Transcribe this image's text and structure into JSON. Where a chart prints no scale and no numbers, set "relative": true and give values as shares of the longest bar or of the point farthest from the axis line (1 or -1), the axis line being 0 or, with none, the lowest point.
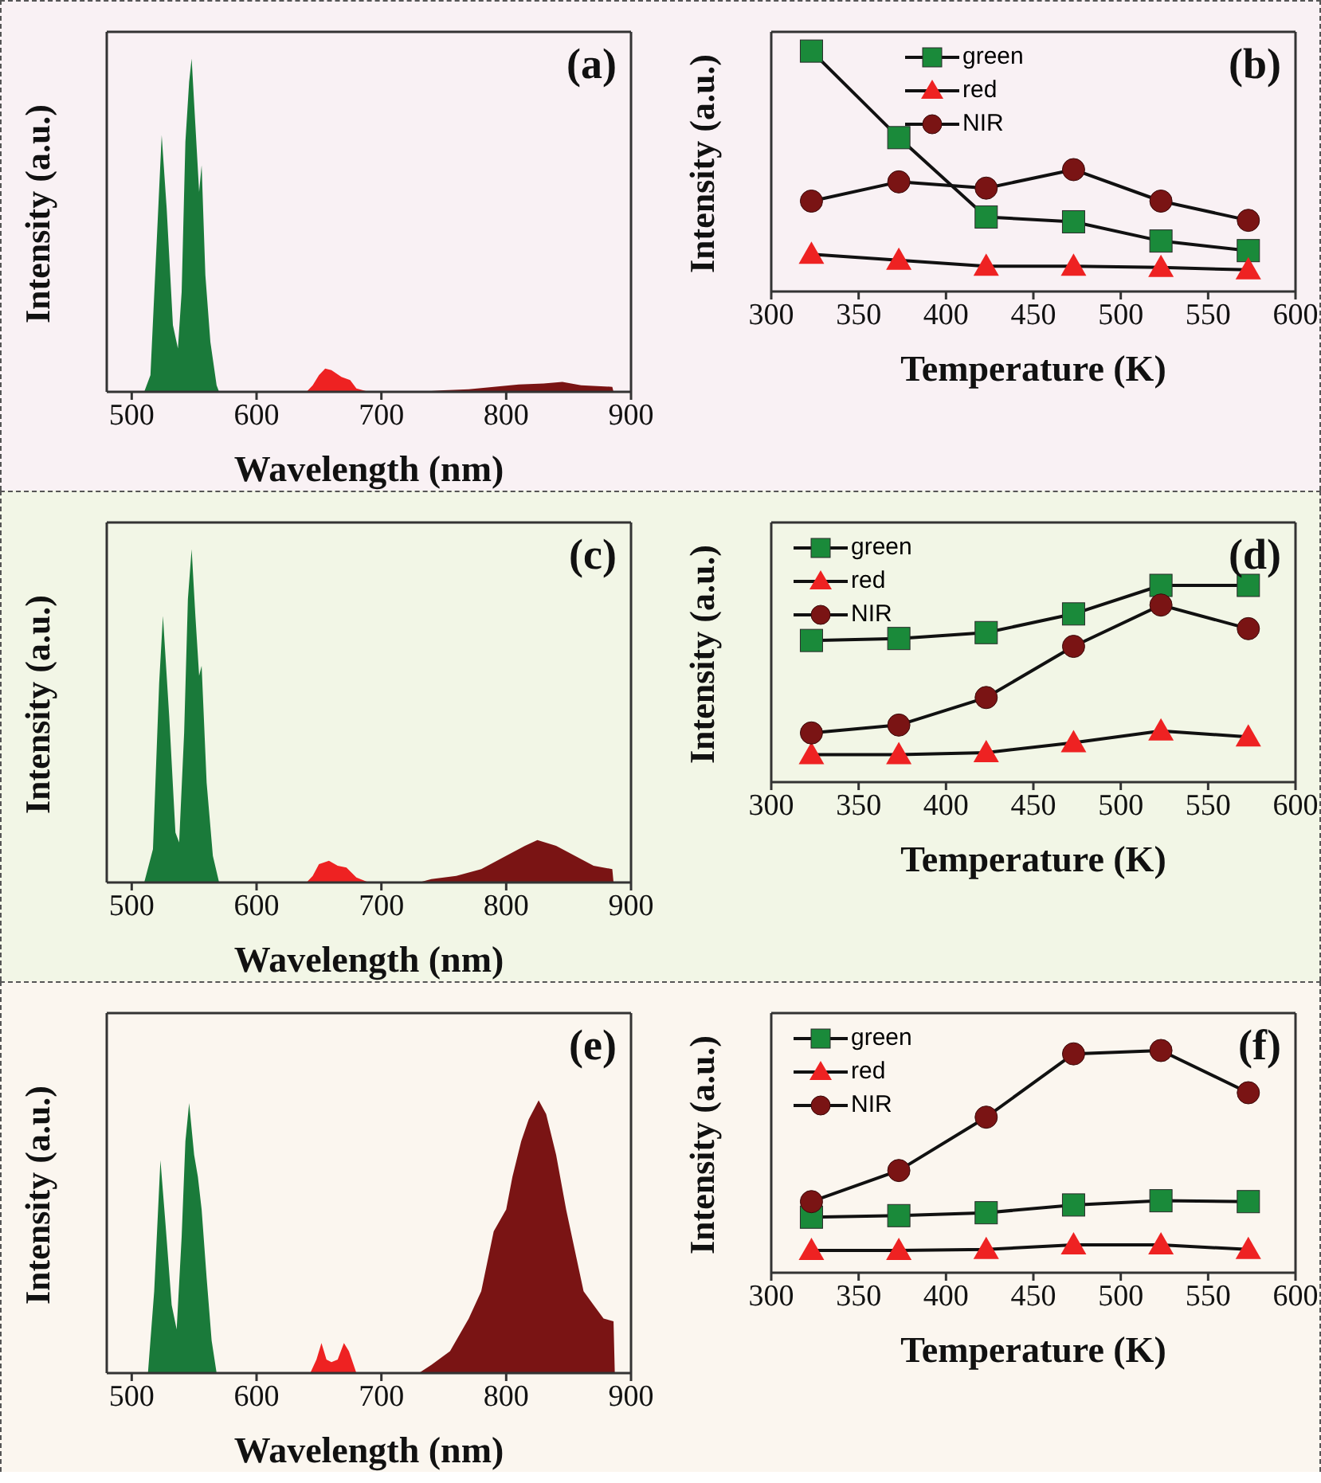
{
  "chart_data": [
    {
      "type": "area",
      "relative": true,
      "xlabel": "Wavelength (nm)",
      "ylabel": "Intensity (a.u.)",
      "xlim": [
        480,
        900
      ],
      "xticks": [
        500,
        600,
        700,
        800,
        900
      ],
      "annotations": [
        "(a)"
      ],
      "series": [
        {
          "color": "#1a7a3a",
          "x": [
            510,
            515,
            520,
            524,
            528,
            533,
            537,
            540,
            543,
            546,
            548,
            551,
            554,
            556,
            559,
            563,
            568,
            570
          ],
          "values": [
            0,
            0.05,
            0.45,
            0.77,
            0.55,
            0.2,
            0.13,
            0.3,
            0.75,
            0.93,
            1,
            0.8,
            0.6,
            0.68,
            0.35,
            0.15,
            0.02,
            0
          ]
        },
        {
          "color": "#ee2222",
          "x": [
            640,
            645,
            650,
            655,
            660,
            668,
            675,
            680,
            690
          ],
          "values": [
            0,
            0.02,
            0.05,
            0.07,
            0.065,
            0.045,
            0.035,
            0.01,
            0
          ]
        },
        {
          "color": "#7a1414",
          "x": [
            730,
            750,
            770,
            790,
            810,
            830,
            845,
            860,
            885,
            886
          ],
          "values": [
            0,
            0.005,
            0.008,
            0.015,
            0.022,
            0.025,
            0.03,
            0.02,
            0.015,
            0
          ]
        }
      ]
    },
    {
      "type": "line",
      "relative": true,
      "xlabel": "Temperature (K)",
      "ylabel": "Intensity (a.u.)",
      "xlim": [
        300,
        600
      ],
      "xticks": [
        300,
        350,
        400,
        450,
        500,
        550,
        600
      ],
      "annotations": [
        "(b)"
      ],
      "legend": "top",
      "x": [
        323,
        373,
        423,
        473,
        523,
        573
      ],
      "series": [
        {
          "name": "green",
          "color": "#1a8a3a",
          "marker": "square",
          "values": [
            1,
            0.64,
            0.31,
            0.29,
            0.21,
            0.17
          ]
        },
        {
          "name": "red",
          "color": "#ee2222",
          "marker": "triangle",
          "values": [
            0.155,
            0.13,
            0.105,
            0.105,
            0.1,
            0.09
          ]
        },
        {
          "name": "NIR",
          "color": "#7a1414",
          "marker": "circle",
          "values": [
            0.376,
            0.456,
            0.43,
            0.507,
            0.376,
            0.296
          ]
        }
      ]
    },
    {
      "type": "area",
      "relative": true,
      "xlabel": "Wavelength (nm)",
      "ylabel": "Intensity (a.u.)",
      "xlim": [
        480,
        900
      ],
      "xticks": [
        500,
        600,
        700,
        800,
        900
      ],
      "annotations": [
        "(c)"
      ],
      "series": [
        {
          "color": "#1a7a3a",
          "x": [
            510,
            517,
            522,
            525,
            530,
            535,
            538,
            542,
            545,
            548,
            551,
            554,
            556,
            560,
            565,
            570
          ],
          "values": [
            0,
            0.1,
            0.6,
            0.8,
            0.5,
            0.15,
            0.12,
            0.45,
            0.85,
            1,
            0.8,
            0.62,
            0.65,
            0.3,
            0.08,
            0
          ]
        },
        {
          "color": "#ee2222",
          "x": [
            640,
            645,
            650,
            658,
            665,
            672,
            680,
            690
          ],
          "values": [
            0,
            0.02,
            0.055,
            0.065,
            0.05,
            0.045,
            0.015,
            0
          ]
        },
        {
          "color": "#7a1414",
          "x": [
            730,
            740,
            760,
            780,
            800,
            815,
            825,
            840,
            855,
            870,
            885,
            886
          ],
          "values": [
            0,
            0.01,
            0.02,
            0.04,
            0.08,
            0.11,
            0.127,
            0.11,
            0.08,
            0.05,
            0.04,
            0
          ]
        }
      ]
    },
    {
      "type": "line",
      "relative": true,
      "xlabel": "Temperature (K)",
      "ylabel": "Intensity (a.u.)",
      "xlim": [
        300,
        600
      ],
      "xticks": [
        300,
        350,
        400,
        450,
        500,
        550,
        600
      ],
      "annotations": [
        "(d)"
      ],
      "legend": "top left",
      "x": [
        323,
        373,
        423,
        473,
        523,
        573
      ],
      "series": [
        {
          "name": "green",
          "color": "#1a8a3a",
          "marker": "square",
          "values": [
            0.72,
            0.73,
            0.76,
            0.855,
            1,
            1
          ]
        },
        {
          "name": "red",
          "color": "#ee2222",
          "marker": "triangle",
          "values": [
            0.14,
            0.14,
            0.15,
            0.2,
            0.26,
            0.23
          ]
        },
        {
          "name": "NIR",
          "color": "#7a1414",
          "marker": "circle",
          "values": [
            0.25,
            0.29,
            0.43,
            0.69,
            0.9,
            0.78
          ]
        }
      ]
    },
    {
      "type": "area",
      "relative": true,
      "xlabel": "Wavelength (nm)",
      "ylabel": "Intensity (a.u.)",
      "xlim": [
        480,
        900
      ],
      "xticks": [
        500,
        600,
        700,
        800,
        900
      ],
      "annotations": [
        "(e)"
      ],
      "series": [
        {
          "color": "#1a7a3a",
          "x": [
            513,
            518,
            523,
            527,
            532,
            536,
            540,
            543,
            546,
            550,
            553,
            556,
            560,
            564,
            568
          ],
          "values": [
            0,
            0.3,
            0.78,
            0.55,
            0.25,
            0.16,
            0.5,
            0.85,
            0.99,
            0.8,
            0.72,
            0.6,
            0.35,
            0.12,
            0
          ]
        },
        {
          "color": "#ee2222",
          "x": [
            643,
            648,
            652,
            656,
            660,
            665,
            670,
            674,
            680
          ],
          "values": [
            0,
            0.05,
            0.11,
            0.05,
            0.04,
            0.05,
            0.11,
            0.08,
            0
          ]
        },
        {
          "color": "#7a1414",
          "x": [
            730,
            740,
            755,
            770,
            780,
            790,
            800,
            805,
            812,
            818,
            826,
            832,
            840,
            848,
            855,
            862,
            870,
            878,
            886,
            887
          ],
          "values": [
            0,
            0.03,
            0.08,
            0.2,
            0.3,
            0.52,
            0.6,
            0.72,
            0.85,
            0.93,
            1,
            0.95,
            0.8,
            0.6,
            0.45,
            0.3,
            0.25,
            0.2,
            0.19,
            0
          ]
        }
      ]
    },
    {
      "type": "line",
      "relative": true,
      "xlabel": "Temperature (K)",
      "ylabel": "Intensity (a.u.)",
      "xlim": [
        300,
        600
      ],
      "xticks": [
        300,
        350,
        400,
        450,
        500,
        550,
        600
      ],
      "annotations": [
        "(f)"
      ],
      "legend": "top left",
      "x": [
        323,
        373,
        423,
        473,
        523,
        573
      ],
      "series": [
        {
          "name": "green",
          "color": "#1a8a3a",
          "marker": "square",
          "values": [
            0.25,
            0.257,
            0.27,
            0.305,
            0.324,
            0.32
          ]
        },
        {
          "name": "red",
          "color": "#ee2222",
          "marker": "triangle",
          "values": [
            0.1,
            0.1,
            0.105,
            0.125,
            0.125,
            0.105
          ]
        },
        {
          "name": "NIR",
          "color": "#7a1414",
          "marker": "circle",
          "values": [
            0.32,
            0.46,
            0.7,
            0.985,
            1,
            0.81
          ]
        }
      ]
    }
  ]
}
